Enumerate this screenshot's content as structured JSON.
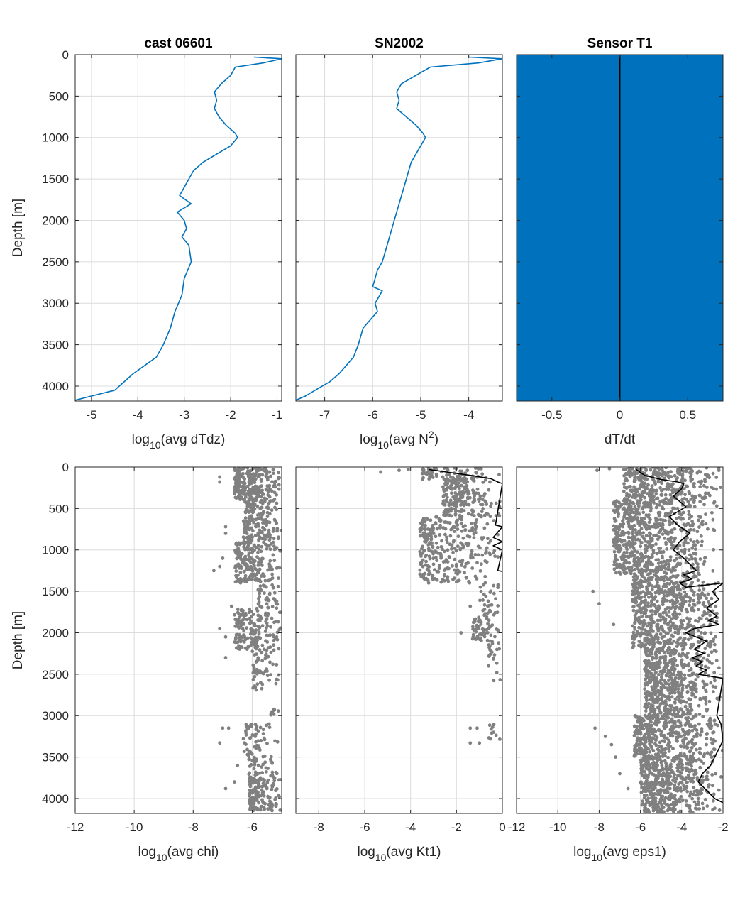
{
  "chart_data": [
    {
      "id": "p1",
      "type": "line",
      "title": "cast 06601",
      "xlabel_main": "log",
      "xlabel_sub": "10",
      "xlabel_rest": "(avg dTdz)",
      "ylabel": "Depth [m]",
      "xlim": [
        -5.35,
        -0.9
      ],
      "ylim": [
        0,
        4180
      ],
      "xticks": [
        -5,
        -4,
        -3,
        -2,
        -1
      ],
      "xtick_labels": [
        "-5",
        "-4",
        "-3",
        "-2",
        "-1"
      ],
      "yticks": [
        0,
        500,
        1000,
        1500,
        2000,
        2500,
        3000,
        3500,
        4000
      ],
      "ytick_labels": [
        "0",
        "500",
        "1000",
        "1500",
        "2000",
        "2500",
        "3000",
        "3500",
        "4000"
      ],
      "grid": true,
      "series": [
        {
          "color": "#0072BD",
          "x": [
            -1.5,
            -0.9,
            -1.3,
            -1.9,
            -2.0,
            -2.2,
            -2.35,
            -2.3,
            -2.35,
            -2.25,
            -2.1,
            -1.9,
            -1.85,
            -2.0,
            -2.3,
            -2.6,
            -2.8,
            -2.9,
            -3.0,
            -3.1,
            -2.85,
            -3.15,
            -3.0,
            -2.95,
            -3.05,
            -2.9,
            -2.85,
            -3.0,
            -3.05,
            -3.2,
            -3.3,
            -3.45,
            -3.6,
            -3.85,
            -4.1,
            -4.3,
            -4.5,
            -5.0,
            -5.35
          ],
          "y": [
            30,
            50,
            100,
            150,
            250,
            350,
            450,
            550,
            650,
            750,
            850,
            950,
            1000,
            1100,
            1200,
            1300,
            1400,
            1500,
            1600,
            1700,
            1800,
            1900,
            2000,
            2100,
            2200,
            2300,
            2500,
            2700,
            2900,
            3100,
            3300,
            3500,
            3650,
            3750,
            3850,
            3950,
            4050,
            4120,
            4170
          ]
        }
      ]
    },
    {
      "id": "p2",
      "type": "line",
      "title": "SN2002",
      "xlabel_main": "log",
      "xlabel_sub": "10",
      "xlabel_rest": "(avg N",
      "xlabel_sup": "2",
      "xlabel_end": ")",
      "ylabel": "",
      "xlim": [
        -7.6,
        -3.3
      ],
      "ylim": [
        0,
        4180
      ],
      "xticks": [
        -7,
        -6,
        -5,
        -4
      ],
      "xtick_labels": [
        "-7",
        "-6",
        "-5",
        "-4"
      ],
      "grid": true,
      "series": [
        {
          "color": "#0072BD",
          "x": [
            -4.0,
            -3.3,
            -3.8,
            -4.8,
            -5.1,
            -5.4,
            -5.5,
            -5.45,
            -5.5,
            -5.3,
            -5.1,
            -4.95,
            -4.9,
            -5.0,
            -5.2,
            -5.3,
            -5.4,
            -5.5,
            -5.6,
            -5.7,
            -5.8,
            -5.9,
            -5.95,
            -6.0,
            -5.8,
            -5.95,
            -5.9,
            -6.2,
            -6.3,
            -6.4,
            -6.55,
            -6.7,
            -6.9,
            -7.2,
            -7.4,
            -7.6
          ],
          "y": [
            30,
            50,
            100,
            150,
            250,
            350,
            450,
            550,
            650,
            750,
            850,
            950,
            1000,
            1100,
            1300,
            1500,
            1700,
            1900,
            2100,
            2300,
            2500,
            2600,
            2700,
            2800,
            2850,
            3000,
            3100,
            3300,
            3500,
            3650,
            3750,
            3850,
            3950,
            4050,
            4120,
            4170
          ]
        }
      ]
    },
    {
      "id": "p3",
      "type": "area",
      "title": "Sensor T1",
      "xlabel_main": "dT/dt",
      "ylabel": "",
      "xlim": [
        -0.76,
        0.76
      ],
      "ylim": [
        0,
        4180
      ],
      "xticks": [
        -0.5,
        0,
        0.5
      ],
      "xtick_labels": [
        "-0.5",
        "0",
        "0.5"
      ],
      "grid": false,
      "fill_color": "#0072BD",
      "fill_xlim": [
        -0.76,
        0.76
      ],
      "line_x": 0,
      "line_color": "#000000"
    },
    {
      "id": "p4",
      "type": "scatter",
      "title": "",
      "xlabel_main": "log",
      "xlabel_sub": "10",
      "xlabel_rest": "(avg chi)",
      "ylabel": "Depth [m]",
      "xlim": [
        -12,
        -5
      ],
      "ylim": [
        0,
        4180
      ],
      "xticks": [
        -12,
        -10,
        -8,
        -6
      ],
      "xtick_labels": [
        "-12",
        "-10",
        "-8",
        "-6"
      ],
      "yticks": [
        0,
        500,
        1000,
        1500,
        2000,
        2500,
        3000,
        3500,
        4000
      ],
      "ytick_labels": [
        "0",
        "500",
        "1000",
        "1500",
        "2000",
        "2500",
        "3000",
        "3500",
        "4000"
      ],
      "grid": true,
      "point_color": "#808080",
      "clusters": [
        {
          "y": [
            0,
            400
          ],
          "x": [
            -6.6,
            -5.0
          ],
          "n": 260
        },
        {
          "y": [
            400,
            900
          ],
          "x": [
            -6.3,
            -5.0
          ],
          "n": 180
        },
        {
          "y": [
            900,
            1400
          ],
          "x": [
            -6.6,
            -5.0
          ],
          "n": 200
        },
        {
          "y": [
            1400,
            1700
          ],
          "x": [
            -5.8,
            -5.0
          ],
          "n": 40
        },
        {
          "y": [
            1700,
            2200
          ],
          "x": [
            -6.6,
            -5.0
          ],
          "n": 180
        },
        {
          "y": [
            2200,
            2700
          ],
          "x": [
            -6.0,
            -5.0
          ],
          "n": 60
        },
        {
          "y": [
            2900,
            3000
          ],
          "x": [
            -5.4,
            -5.0
          ],
          "n": 8
        },
        {
          "y": [
            3100,
            3500
          ],
          "x": [
            -6.3,
            -5.0
          ],
          "n": 60
        },
        {
          "y": [
            3500,
            3750
          ],
          "x": [
            -6.2,
            -5.0
          ],
          "n": 40
        },
        {
          "y": [
            3750,
            4150
          ],
          "x": [
            -6.1,
            -5.0
          ],
          "n": 140
        }
      ],
      "outliers": [
        {
          "x": -7.1,
          "y": 120
        },
        {
          "x": -7.1,
          "y": 180
        },
        {
          "x": -6.9,
          "y": 720
        },
        {
          "x": -6.9,
          "y": 800
        },
        {
          "x": -7.0,
          "y": 1100
        },
        {
          "x": -7.1,
          "y": 1200
        },
        {
          "x": -7.3,
          "y": 1250
        },
        {
          "x": -6.7,
          "y": 1680
        },
        {
          "x": -7.1,
          "y": 1950
        },
        {
          "x": -6.9,
          "y": 2050
        },
        {
          "x": -6.9,
          "y": 2300
        },
        {
          "x": -7.0,
          "y": 3150
        },
        {
          "x": -6.8,
          "y": 3150
        },
        {
          "x": -7.1,
          "y": 3330
        },
        {
          "x": -6.5,
          "y": 3600
        },
        {
          "x": -6.9,
          "y": 3880
        },
        {
          "x": -6.6,
          "y": 3800
        }
      ]
    },
    {
      "id": "p5",
      "type": "scatter",
      "title": "",
      "xlabel_main": "log",
      "xlabel_sub": "10",
      "xlabel_rest": "(avg Kt1)",
      "ylabel": "",
      "xlim": [
        -9,
        0
      ],
      "ylim": [
        0,
        4180
      ],
      "xticks": [
        -8,
        -6,
        -4,
        -2,
        0
      ],
      "xtick_labels": [
        "-8",
        "-6",
        "-4",
        "-2",
        "0"
      ],
      "grid": true,
      "point_color": "#808080",
      "clusters": [
        {
          "y": [
            0,
            150
          ],
          "x": [
            -3.5,
            0
          ],
          "n": 80
        },
        {
          "y": [
            150,
            600
          ],
          "x": [
            -2.6,
            0
          ],
          "n": 200
        },
        {
          "y": [
            600,
            1400
          ],
          "x": [
            -3.6,
            0
          ],
          "n": 300
        },
        {
          "y": [
            1400,
            1800
          ],
          "x": [
            -1.0,
            0
          ],
          "n": 30
        },
        {
          "y": [
            1800,
            2100
          ],
          "x": [
            -1.3,
            0
          ],
          "n": 60
        },
        {
          "y": [
            2100,
            2600
          ],
          "x": [
            -0.6,
            0
          ],
          "n": 20
        },
        {
          "y": [
            3100,
            3300
          ],
          "x": [
            -0.6,
            0
          ],
          "n": 10
        }
      ],
      "outliers": [
        {
          "x": -5.3,
          "y": 60
        },
        {
          "x": -4.5,
          "y": 40
        },
        {
          "x": -4.1,
          "y": 30
        },
        {
          "x": -1.4,
          "y": 1680
        },
        {
          "x": -1.4,
          "y": 3150
        },
        {
          "x": -1.1,
          "y": 3150
        },
        {
          "x": -1.4,
          "y": 3330
        },
        {
          "x": -1.0,
          "y": 3330
        },
        {
          "x": -0.6,
          "y": 2400
        },
        {
          "x": -1.8,
          "y": 2000
        }
      ],
      "series": [
        {
          "color": "#000000",
          "x": [
            -3.2,
            -1.4,
            -0.5,
            -0.2,
            0,
            -0.3,
            0,
            -0.4,
            0,
            -0.4,
            0,
            -0.2,
            0
          ],
          "y": [
            30,
            100,
            140,
            180,
            200,
            700,
            720,
            850,
            900,
            950,
            1000,
            1250,
            1260
          ]
        }
      ]
    },
    {
      "id": "p6",
      "type": "scatter",
      "title": "",
      "xlabel_main": "log",
      "xlabel_sub": "10",
      "xlabel_rest": "(avg eps1)",
      "ylabel": "",
      "xlim": [
        -12,
        -2
      ],
      "ylim": [
        0,
        4180
      ],
      "xticks": [
        -12,
        -10,
        -8,
        -6,
        -4,
        -2
      ],
      "xtick_labels": [
        "-12",
        "-10",
        "-8",
        "-6",
        "-4",
        "-2"
      ],
      "grid": true,
      "point_color": "#808080",
      "clusters": [
        {
          "y": [
            0,
            400
          ],
          "x": [
            -6.8,
            -2.0
          ],
          "n": 320
        },
        {
          "y": [
            400,
            1300
          ],
          "x": [
            -7.3,
            -2.2
          ],
          "n": 700
        },
        {
          "y": [
            1300,
            2200
          ],
          "x": [
            -6.4,
            -2.0
          ],
          "n": 650
        },
        {
          "y": [
            2200,
            3000
          ],
          "x": [
            -5.8,
            -2.0
          ],
          "n": 550
        },
        {
          "y": [
            3000,
            3500
          ],
          "x": [
            -6.3,
            -2.0
          ],
          "n": 400
        },
        {
          "y": [
            3500,
            4170
          ],
          "x": [
            -6.0,
            -2.0
          ],
          "n": 500
        }
      ],
      "outliers": [
        {
          "x": -8.1,
          "y": 40
        },
        {
          "x": -7.5,
          "y": 20
        },
        {
          "x": -6.8,
          "y": 30
        },
        {
          "x": -8.3,
          "y": 1500
        },
        {
          "x": -8.0,
          "y": 1650
        },
        {
          "x": -7.3,
          "y": 1900
        },
        {
          "x": -8.2,
          "y": 3150
        },
        {
          "x": -7.7,
          "y": 3250
        },
        {
          "x": -7.4,
          "y": 3350
        },
        {
          "x": -7.2,
          "y": 3500
        },
        {
          "x": -7.0,
          "y": 3700
        },
        {
          "x": -6.6,
          "y": 3880
        }
      ],
      "series": [
        {
          "color": "#000000",
          "x": [
            -6.2,
            -5.8,
            -5.0,
            -4.2,
            -3.9,
            -4.0,
            -4.4,
            -3.8,
            -4.6,
            -4.2,
            -3.6,
            -4.1,
            -4.4,
            -3.9,
            -3.5,
            -3.3,
            -3.9,
            -3.5,
            -4.1,
            -3.8,
            -2.0,
            -2.5,
            -2.2,
            -2.8,
            -2.3,
            -2.7,
            -2.2,
            -3.4,
            -3.8,
            -2.8,
            -3.4,
            -2.9,
            -3.5,
            -3.0,
            -3.3,
            -2.8,
            -3.2,
            -2.0,
            -2.3,
            -2.1,
            -2.0,
            -2.6,
            -3.0,
            -3.2,
            -2.8,
            -2.4,
            -2.0
          ],
          "y": [
            30,
            100,
            150,
            180,
            200,
            260,
            350,
            480,
            600,
            700,
            800,
            900,
            1000,
            1100,
            1200,
            1250,
            1300,
            1350,
            1400,
            1450,
            1400,
            1500,
            1600,
            1700,
            1800,
            1850,
            1900,
            1950,
            2000,
            2100,
            2200,
            2250,
            2300,
            2350,
            2400,
            2450,
            2500,
            2550,
            3000,
            3100,
            3300,
            3600,
            3700,
            3800,
            3900,
            4000,
            4050
          ]
        }
      ]
    }
  ]
}
